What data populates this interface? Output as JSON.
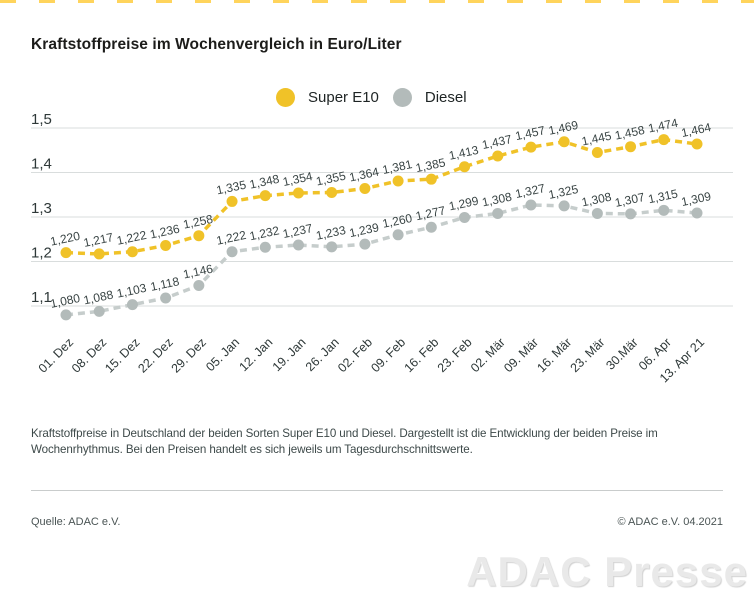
{
  "page": {
    "title": "Kraftstoffpreise im Wochenvergleich in Euro/Liter",
    "caption": "Kraftstoffpreise in Deutschland der beiden Sorten Super E10 und Diesel. Dargestellt ist die Entwicklung der beiden Preise im Wochenrhythmus. Bei den Preisen handelt es sich jeweils um Tagesdurchschnittswerte.",
    "source": "Quelle: ADAC e.V.",
    "copyright": "© ADAC e.V. 04.2021",
    "watermark": "ADAC Presse"
  },
  "colors": {
    "accent_dash": "#FFD45C",
    "grid": "#d9dddd",
    "axis_text": "#2e3838",
    "point_label_text": "#3a4545",
    "super_e10": "#F0C228",
    "diesel_dot": "#B3BBBA",
    "diesel_line": "#C6CDCC"
  },
  "chart_data": {
    "type": "line",
    "title": "Kraftstoffpreise im Wochenvergleich in Euro/Liter",
    "unit": "Euro/Liter",
    "categories": [
      "01. Dez",
      "08. Dez",
      "15. Dez",
      "22. Dez",
      "29. Dez",
      "05. Jan",
      "12. Jan",
      "19. Jan",
      "26. Jan",
      "02. Feb",
      "09. Feb",
      "16. Feb",
      "23. Feb",
      "02. Mär",
      "09. Mär",
      "16. Mär",
      "23. Mär",
      "30.Mär",
      "06. Apr",
      "13. Apr 21"
    ],
    "series": [
      {
        "name": "Super E10",
        "color": "#F0C228",
        "line_color": "#F0C228",
        "values": [
          1.22,
          1.217,
          1.222,
          1.236,
          1.258,
          1.335,
          1.348,
          1.354,
          1.355,
          1.364,
          1.381,
          1.385,
          1.413,
          1.437,
          1.457,
          1.469,
          1.445,
          1.458,
          1.474,
          1.464
        ]
      },
      {
        "name": "Diesel",
        "color": "#B3BBBA",
        "line_color": "#C6CDCC",
        "values": [
          1.08,
          1.088,
          1.103,
          1.118,
          1.146,
          1.222,
          1.232,
          1.237,
          1.233,
          1.239,
          1.26,
          1.277,
          1.299,
          1.308,
          1.327,
          1.325,
          1.308,
          1.307,
          1.315,
          1.309
        ]
      }
    ],
    "y_ticks": [
      "1,5",
      "1,4",
      "1,3",
      "1,2",
      "1,1"
    ],
    "ylim": [
      1.05,
      1.5
    ],
    "grid": "horizontal",
    "legend_position": "top-center",
    "point_labels": true,
    "line_style": "dashed",
    "decimal_separator": ","
  }
}
